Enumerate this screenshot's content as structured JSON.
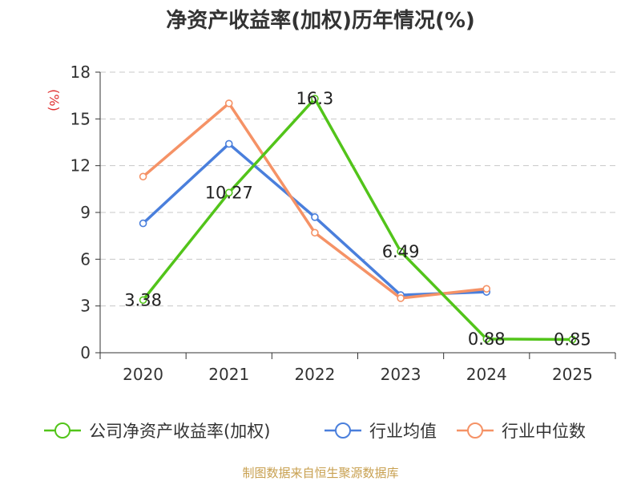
{
  "chart_data": {
    "type": "line",
    "title": "净资产收益率(加权)历年情况(%)",
    "ylabel": "(%)",
    "xlabel": "",
    "categories": [
      "2020",
      "2021",
      "2022",
      "2023",
      "2024",
      "2025"
    ],
    "ylim": [
      0,
      18
    ],
    "yticks": [
      0,
      3,
      6,
      9,
      12,
      15,
      18
    ],
    "grid": true,
    "legend_position": "bottom",
    "series": [
      {
        "name": "公司净资产收益率(加权)",
        "color": "#52c41a",
        "values": [
          3.38,
          10.27,
          16.3,
          6.49,
          0.88,
          0.85
        ],
        "labels": [
          "3.38",
          "10.27",
          "16.3",
          "6.49",
          "0.88",
          "0.85"
        ]
      },
      {
        "name": "行业均值",
        "color": "#4a7fdc",
        "values": [
          8.3,
          13.4,
          8.7,
          3.7,
          3.9,
          null
        ]
      },
      {
        "name": "行业中位数",
        "color": "#f59266",
        "values": [
          11.3,
          16.0,
          7.7,
          3.5,
          4.1,
          null
        ]
      }
    ],
    "source": "制图数据来自恒生聚源数据库"
  }
}
